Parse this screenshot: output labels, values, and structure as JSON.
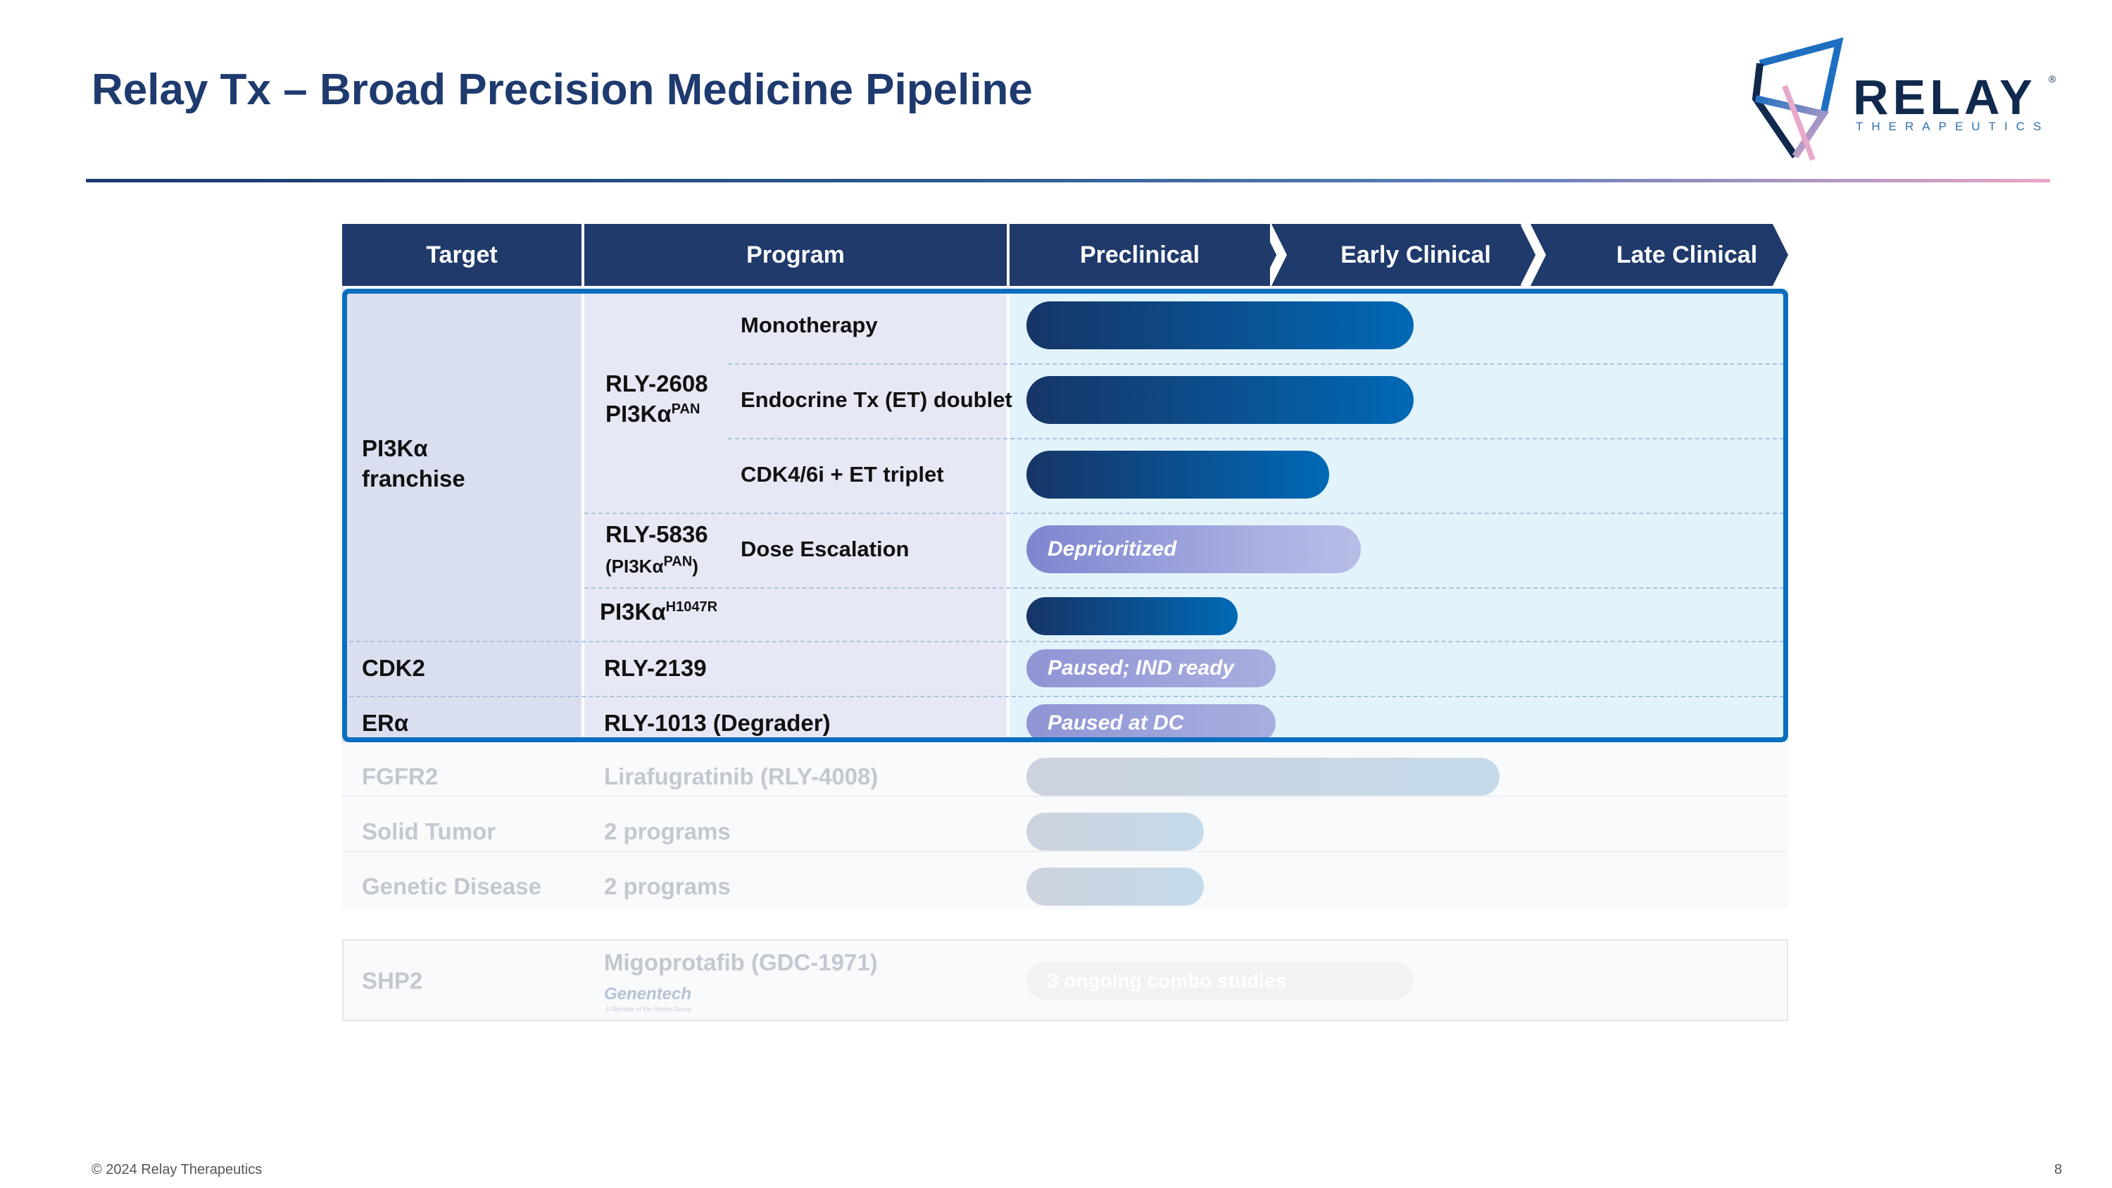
{
  "title": "Relay Tx – Broad Precision Medicine Pipeline",
  "logo": {
    "word": "RELAY",
    "registered": "®",
    "subtitle": "THERAPEUTICS"
  },
  "table": {
    "headers": {
      "target": "Target",
      "program": "Program"
    },
    "stages": [
      "Preclinical",
      "Early Clinical",
      "Late Clinical"
    ],
    "targets": {
      "pi3k_line1": "PI3Kα",
      "pi3k_line2": "franchise",
      "cdk2": "CDK2",
      "era": "ERα",
      "fgfr2": "FGFR2",
      "solid": "Solid Tumor",
      "genetic": "Genetic Disease",
      "shp2": "SHP2"
    },
    "programs": {
      "rly2608_name": "RLY-2608",
      "rly2608_sub": "PI3Kα",
      "rly2608_sup": "PAN",
      "mono": "Monotherapy",
      "et_doublet": "Endocrine Tx (ET) doublet",
      "cdk_triplet": "CDK4/6i + ET triplet",
      "rly5836_name": "RLY-5836",
      "rly5836_sub_pre": "(PI3Kα",
      "rly5836_sup": "PAN",
      "rly5836_sub_post": ")",
      "dose_esc": "Dose Escalation",
      "h1047r_base": "PI3Kα",
      "h1047r_sup": "H1047R",
      "rly2139": "RLY-2139",
      "rly1013": "RLY-1013 (Degrader)",
      "lirafug": "Lirafugratinib (RLY-4008)",
      "solid_prog": "2 programs",
      "genetic_prog": "2 programs",
      "migo": "Migoprotafib (GDC-1971)",
      "genentech": "Genentech",
      "genentech_sub": "A Member of the Roche Group"
    },
    "bars": {
      "deprioritized": "Deprioritized",
      "paused_ind": "Paused; IND ready",
      "paused_dc": "Paused at DC",
      "combo": "3 ongoing combo studies"
    }
  },
  "footer": {
    "copyright": "© 2024 Relay Therapeutics",
    "page": "8"
  },
  "colors": {
    "navy": "#1f3a6b",
    "accent": "#0a6ec0",
    "paused": "#9aa0da"
  }
}
